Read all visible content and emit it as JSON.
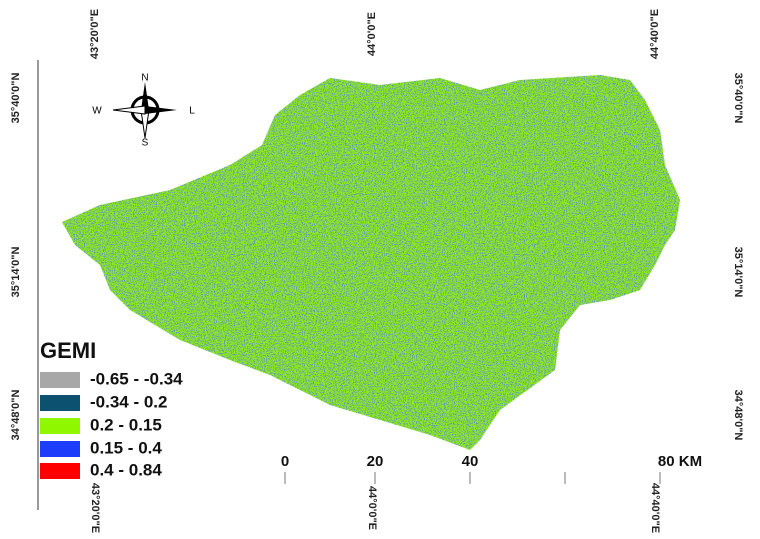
{
  "coordinates": {
    "top": [
      "43°20'0\"E",
      "44°0'0\"E",
      "44°40'0\"E"
    ],
    "bottom": [
      "43°20'0\"E",
      "44°0'0\"E",
      "44°40'0\"E"
    ],
    "left": [
      "35°40'0\"N",
      "35°14'0\"N",
      "34°48'0\"N"
    ],
    "right": [
      "35°40'0\"N",
      "35°14'0\"N",
      "34°48'0\"N"
    ]
  },
  "compass": {
    "north": "N",
    "south": "S",
    "west": "W",
    "east": "L"
  },
  "legend": {
    "title": "GEMI",
    "items": [
      {
        "label": "-0.65 - -0.34",
        "color": "#a8a8a8"
      },
      {
        "label": "-0.34 - 0.2",
        "color": "#0c5170"
      },
      {
        "label": "0.2 - 0.15",
        "color": "#8ff800"
      },
      {
        "label": "0.15 - 0.4",
        "color": "#1c3dfa"
      },
      {
        "label": "0.4 - 0.84",
        "color": "#ff0000"
      }
    ]
  },
  "scale_bar": [
    "0",
    "20",
    "40",
    "80 KM"
  ]
}
